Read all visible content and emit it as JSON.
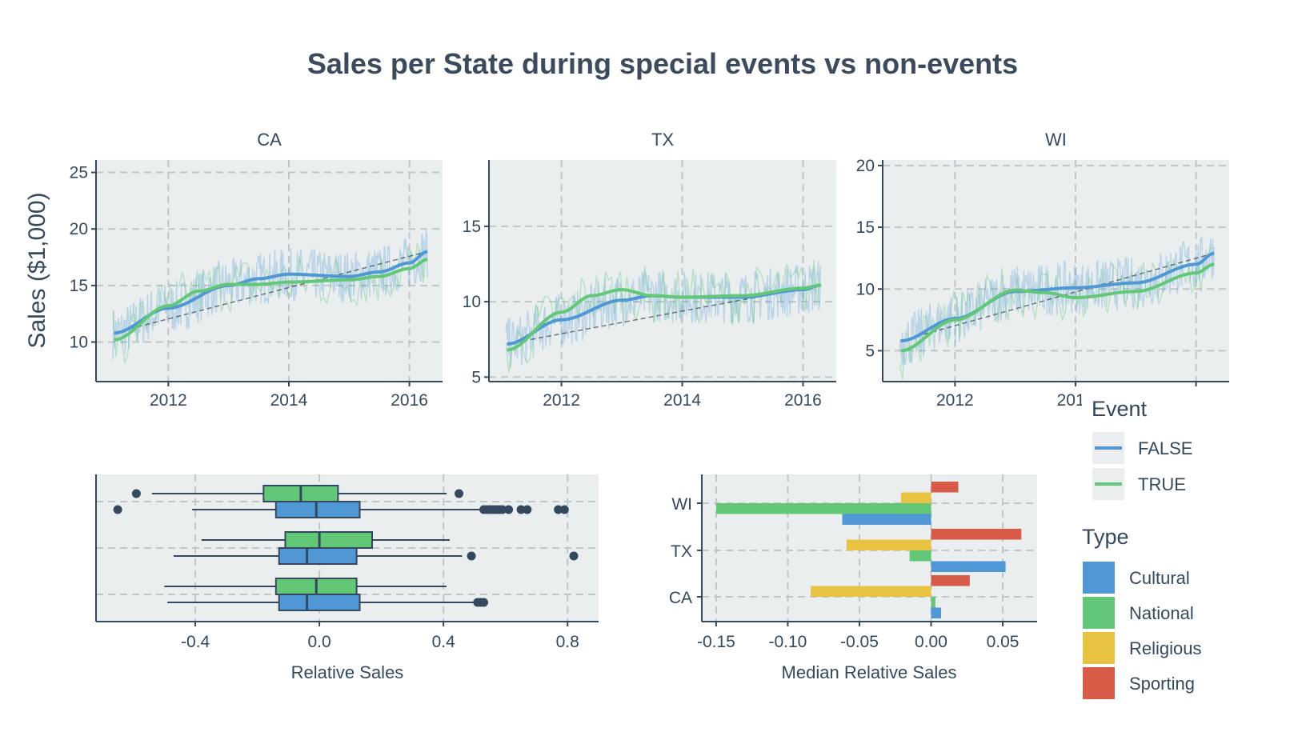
{
  "title": "Sales per State during special events vs non-events",
  "colors": {
    "FALSE": "#4f97d5",
    "TRUE": "#62c878",
    "Cultural": "#4f97d5",
    "National": "#62c878",
    "Religious": "#e8c342",
    "Sporting": "#d85b48",
    "panel_bg": "#eaeeef",
    "text": "#34495e"
  },
  "chart_data": [
    {
      "type": "line",
      "title": "Sales per State during special events vs non-events",
      "ylabel": "Sales ($1,000)",
      "xlabel": "",
      "note": "raw daily sales shown as faint noisy lines; smoothed trends listed here",
      "panels": [
        {
          "strip": "CA",
          "xlim": [
            2010.8,
            2016.55
          ],
          "ylim": [
            6.5,
            26.1
          ],
          "xticks": [
            2012,
            2014,
            2016
          ],
          "yticks": [
            10,
            15,
            20,
            25
          ],
          "series": [
            {
              "name": "FALSE",
              "x": [
                2011.1,
                2012,
                2013,
                2013.5,
                2014,
                2015,
                2015.5,
                2016,
                2016.3
              ],
              "y": [
                10.8,
                13.0,
                15.0,
                15.6,
                16.0,
                15.8,
                16.2,
                17.0,
                18.0
              ]
            },
            {
              "name": "TRUE",
              "x": [
                2011.1,
                2012,
                2012.5,
                2013,
                2013.5,
                2014,
                2015,
                2015.5,
                2016,
                2016.3
              ],
              "y": [
                10.2,
                13.2,
                14.5,
                15.1,
                15.1,
                15.3,
                15.5,
                15.8,
                16.5,
                17.3
              ]
            }
          ]
        },
        {
          "strip": "TX",
          "xlim": [
            2010.8,
            2016.55
          ],
          "ylim": [
            4.7,
            19.4
          ],
          "xticks": [
            2012,
            2014,
            2016
          ],
          "yticks": [
            5,
            10,
            15
          ],
          "series": [
            {
              "name": "FALSE",
              "x": [
                2011.1,
                2012,
                2013,
                2013.5,
                2014,
                2015,
                2016,
                2016.3
              ],
              "y": [
                7.2,
                8.8,
                10.1,
                10.4,
                10.3,
                10.3,
                10.8,
                11.1
              ]
            },
            {
              "name": "TRUE",
              "x": [
                2011.1,
                2012,
                2012.5,
                2013,
                2013.5,
                2014,
                2015,
                2016,
                2016.3
              ],
              "y": [
                6.8,
                9.3,
                10.4,
                10.8,
                10.4,
                10.3,
                10.4,
                10.9,
                11.1
              ]
            }
          ]
        },
        {
          "strip": "WI",
          "xlim": [
            2010.8,
            2016.55
          ],
          "ylim": [
            2.5,
            20.45
          ],
          "xticks": [
            2012,
            2014,
            2016
          ],
          "yticks": [
            5,
            10,
            15,
            20
          ],
          "series": [
            {
              "name": "FALSE",
              "x": [
                2011.1,
                2012,
                2013,
                2014,
                2015,
                2016,
                2016.3
              ],
              "y": [
                5.8,
                7.6,
                9.8,
                10.1,
                10.5,
                12.0,
                12.9
              ]
            },
            {
              "name": "TRUE",
              "x": [
                2011.1,
                2012,
                2013,
                2013.5,
                2014,
                2015,
                2016,
                2016.3
              ],
              "y": [
                5.0,
                7.5,
                9.9,
                9.7,
                9.3,
                9.8,
                11.3,
                12.0
              ]
            }
          ]
        }
      ]
    },
    {
      "type": "box",
      "xlabel": "Relative Sales",
      "xlim": [
        -0.72,
        0.9
      ],
      "xticks": [
        -0.4,
        0.0,
        0.4,
        0.8
      ],
      "xtick_labels": [
        "-0.4",
        "0.0",
        "0.4",
        "0.8"
      ],
      "groups": [
        {
          "state": "WI",
          "event": "TRUE",
          "whisker_low": -0.54,
          "q1": -0.18,
          "median": -0.06,
          "q3": 0.06,
          "whisker_high": 0.41,
          "outliers": [
            -0.59,
            0.45
          ]
        },
        {
          "state": "WI",
          "event": "FALSE",
          "whisker_low": -0.41,
          "q1": -0.14,
          "median": -0.01,
          "q3": 0.13,
          "whisker_high": 0.52,
          "outliers": [
            -0.65,
            0.53,
            0.54,
            0.55,
            0.56,
            0.57,
            0.58,
            0.59,
            0.61,
            0.65,
            0.67,
            0.77,
            0.79
          ]
        },
        {
          "state": "TX",
          "event": "TRUE",
          "whisker_low": -0.38,
          "q1": -0.11,
          "median": 0.0,
          "q3": 0.17,
          "whisker_high": 0.42,
          "outliers": []
        },
        {
          "state": "TX",
          "event": "FALSE",
          "whisker_low": -0.47,
          "q1": -0.13,
          "median": -0.04,
          "q3": 0.12,
          "whisker_high": 0.46,
          "outliers": [
            0.49,
            0.82
          ]
        },
        {
          "state": "CA",
          "event": "TRUE",
          "whisker_low": -0.5,
          "q1": -0.14,
          "median": -0.01,
          "q3": 0.12,
          "whisker_high": 0.41,
          "outliers": []
        },
        {
          "state": "CA",
          "event": "FALSE",
          "whisker_low": -0.49,
          "q1": -0.13,
          "median": -0.04,
          "q3": 0.13,
          "whisker_high": 0.51,
          "outliers": [
            0.51,
            0.52,
            0.53
          ]
        }
      ]
    },
    {
      "type": "bar",
      "orientation": "horizontal",
      "xlabel": "Median Relative Sales",
      "xlim": [
        -0.16,
        0.074
      ],
      "xticks": [
        -0.15,
        -0.1,
        -0.05,
        0.0,
        0.05
      ],
      "xtick_labels": [
        "-0.15",
        "-0.10",
        "-0.05",
        "0.00",
        "0.05"
      ],
      "categories": [
        "WI",
        "TX",
        "CA"
      ],
      "series": [
        {
          "name": "Sporting",
          "values": [
            0.019,
            0.063,
            0.027
          ]
        },
        {
          "name": "Religious",
          "values": [
            -0.021,
            -0.059,
            -0.084
          ]
        },
        {
          "name": "National",
          "values": [
            -0.15,
            -0.015,
            0.003
          ]
        },
        {
          "name": "Cultural",
          "values": [
            -0.062,
            0.052,
            0.007
          ]
        }
      ]
    }
  ],
  "legend_event": {
    "title": "Event",
    "items": [
      "FALSE",
      "TRUE"
    ]
  },
  "legend_type": {
    "title": "Type",
    "items": [
      "Cultural",
      "National",
      "Religious",
      "Sporting"
    ]
  }
}
